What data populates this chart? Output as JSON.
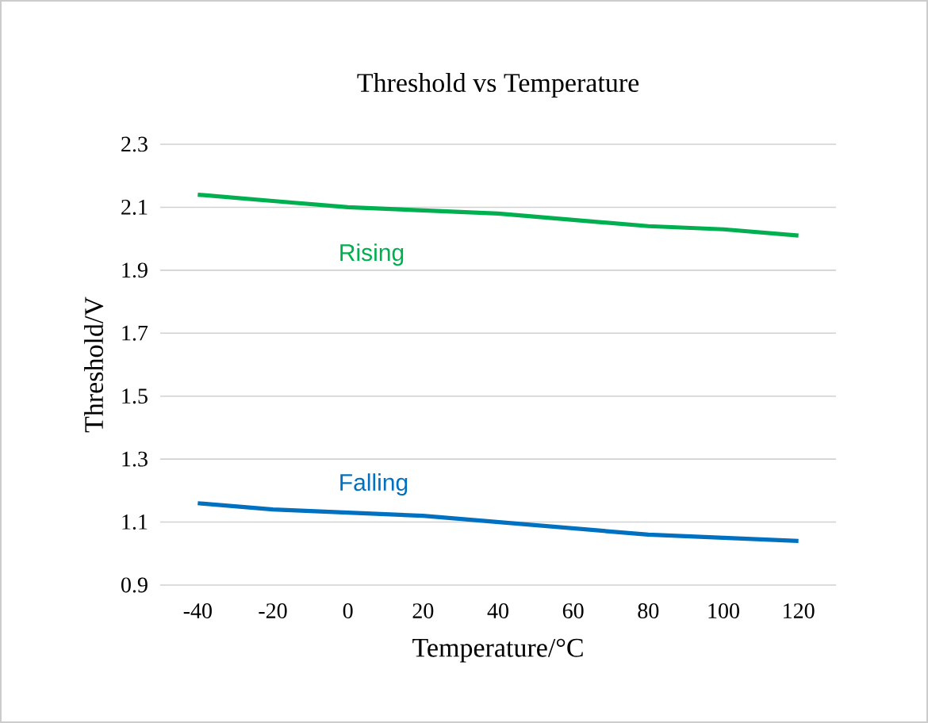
{
  "chart_data": {
    "type": "line",
    "title": "Threshold vs Temperature",
    "xlabel": "Temperature/°C",
    "ylabel": "Threshold/V",
    "categories": [
      "-40",
      "-20",
      "0",
      "20",
      "40",
      "60",
      "80",
      "100",
      "120"
    ],
    "series": [
      {
        "name": "Rising",
        "color": "#00b050",
        "values": [
          2.14,
          2.12,
          2.1,
          2.09,
          2.08,
          2.06,
          2.04,
          2.03,
          2.01
        ]
      },
      {
        "name": "Falling",
        "color": "#0070c0",
        "values": [
          1.16,
          1.14,
          1.13,
          1.12,
          1.1,
          1.08,
          1.06,
          1.05,
          1.04
        ]
      }
    ],
    "ylim": [
      0.9,
      2.3
    ],
    "yticks": [
      0.9,
      1.1,
      1.3,
      1.5,
      1.7,
      1.9,
      2.1,
      2.3
    ],
    "grid": "y",
    "legend": false,
    "marker": "none",
    "line_style": "solid"
  }
}
